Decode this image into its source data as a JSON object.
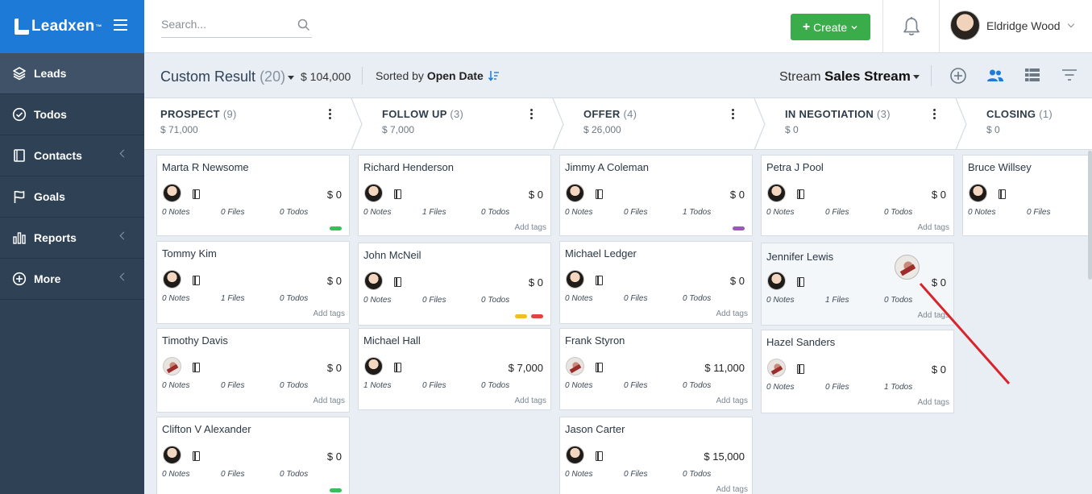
{
  "brand": {
    "name": "Leadxen",
    "tm": "™"
  },
  "sidebar": {
    "items": [
      {
        "label": "Leads",
        "icon": "layers-icon",
        "active": true,
        "has_submenu": false
      },
      {
        "label": "Todos",
        "icon": "check-circle-icon",
        "active": false,
        "has_submenu": false
      },
      {
        "label": "Contacts",
        "icon": "address-book-icon",
        "active": false,
        "has_submenu": true
      },
      {
        "label": "Goals",
        "icon": "flag-icon",
        "active": false,
        "has_submenu": false
      },
      {
        "label": "Reports",
        "icon": "bar-chart-icon",
        "active": false,
        "has_submenu": true
      },
      {
        "label": "More",
        "icon": "plus-circle-icon",
        "active": false,
        "has_submenu": true
      }
    ]
  },
  "topbar": {
    "search_placeholder": "Search...",
    "create_label": "Create",
    "user_name": "Eldridge Wood"
  },
  "toolbar": {
    "title": "Custom Result",
    "count": "(20)",
    "total": "$ 104,000",
    "sorted_prefix": "Sorted by",
    "sorted_value": "Open Date",
    "stream_prefix": "Stream",
    "stream_value": "Sales Stream"
  },
  "stages": [
    {
      "name": "PROSPECT",
      "count": "(9)",
      "amount": "$ 71,000"
    },
    {
      "name": "FOLLOW UP",
      "count": "(3)",
      "amount": "$ 7,000"
    },
    {
      "name": "OFFER",
      "count": "(4)",
      "amount": "$ 26,000"
    },
    {
      "name": "IN NEGOTIATION",
      "count": "(3)",
      "amount": "$ 0"
    },
    {
      "name": "CLOSING",
      "count": "(1)",
      "amount": "$ 0"
    }
  ],
  "columns": [
    [
      {
        "name": "Marta R Newsome",
        "amount": "$ 0",
        "notes": "0 Notes",
        "files": "0 Files",
        "todos": "0 Todos",
        "tags": "",
        "pills": [
          "#34c05a"
        ],
        "avatar": "a"
      },
      {
        "name": "Tommy Kim",
        "amount": "$ 0",
        "notes": "0 Notes",
        "files": "1 Files",
        "todos": "0 Todos",
        "tags": "Add tags",
        "pills": [],
        "avatar": "a"
      },
      {
        "name": "Timothy Davis",
        "amount": "$ 0",
        "notes": "0 Notes",
        "files": "0 Files",
        "todos": "0 Todos",
        "tags": "Add tags",
        "pills": [],
        "avatar": "b"
      },
      {
        "name": "Clifton V Alexander",
        "amount": "$ 0",
        "notes": "0 Notes",
        "files": "0 Files",
        "todos": "0 Todos",
        "tags": "",
        "pills": [
          "#34c05a"
        ],
        "avatar": "a"
      }
    ],
    [
      {
        "name": "Richard Henderson",
        "amount": "$ 0",
        "notes": "0 Notes",
        "files": "1 Files",
        "todos": "0 Todos",
        "tags": "Add tags",
        "pills": [],
        "avatar": "a"
      },
      {
        "name": "John McNeil",
        "amount": "$ 0",
        "notes": "0 Notes",
        "files": "0 Files",
        "todos": "0 Todos",
        "tags": "",
        "pills": [
          "#f0bf1a",
          "#e2443a"
        ],
        "avatar": "a"
      },
      {
        "name": "Michael Hall",
        "amount": "$ 7,000",
        "notes": "1 Notes",
        "files": "0 Files",
        "todos": "0 Todos",
        "tags": "Add tags",
        "pills": [],
        "avatar": "a"
      }
    ],
    [
      {
        "name": "Jimmy A Coleman",
        "amount": "$ 0",
        "notes": "0 Notes",
        "files": "0 Files",
        "todos": "1 Todos",
        "tags": "",
        "pills": [
          "#9b59b6"
        ],
        "avatar": "a"
      },
      {
        "name": "Michael Ledger",
        "amount": "$ 0",
        "notes": "0 Notes",
        "files": "0 Files",
        "todos": "0 Todos",
        "tags": "Add tags",
        "pills": [],
        "avatar": "a"
      },
      {
        "name": "Frank Styron",
        "amount": "$ 11,000",
        "notes": "0 Notes",
        "files": "0 Files",
        "todos": "0 Todos",
        "tags": "Add tags",
        "pills": [],
        "avatar": "b"
      },
      {
        "name": "Jason Carter",
        "amount": "$ 15,000",
        "notes": "0 Notes",
        "files": "0 Files",
        "todos": "0 Todos",
        "tags": "Add tags",
        "pills": [],
        "avatar": "a"
      }
    ],
    [
      {
        "name": "Petra J Pool",
        "amount": "$ 0",
        "notes": "0 Notes",
        "files": "0 Files",
        "todos": "0 Todos",
        "tags": "Add tags",
        "pills": [],
        "avatar": "a"
      },
      {
        "name": "Jennifer Lewis",
        "amount": "$ 0",
        "notes": "0 Notes",
        "files": "1 Files",
        "todos": "0 Todos",
        "tags": "Add tags",
        "pills": [],
        "avatar": "a",
        "highlight": true
      },
      {
        "name": "Hazel Sanders",
        "amount": "$ 0",
        "notes": "0 Notes",
        "files": "0 Files",
        "todos": "1 Todos",
        "tags": "Add tags",
        "pills": [],
        "avatar": "b"
      }
    ],
    [
      {
        "name": "Bruce Willsey",
        "amount": "",
        "notes": "0 Notes",
        "files": "0 Files",
        "todos": "",
        "tags": "",
        "pills": [],
        "avatar": "a"
      }
    ]
  ],
  "colors": {
    "brand": "#1d7ad6",
    "sidebar": "#2e4155",
    "create": "#3aad4a",
    "annotation": "#d9232d"
  }
}
